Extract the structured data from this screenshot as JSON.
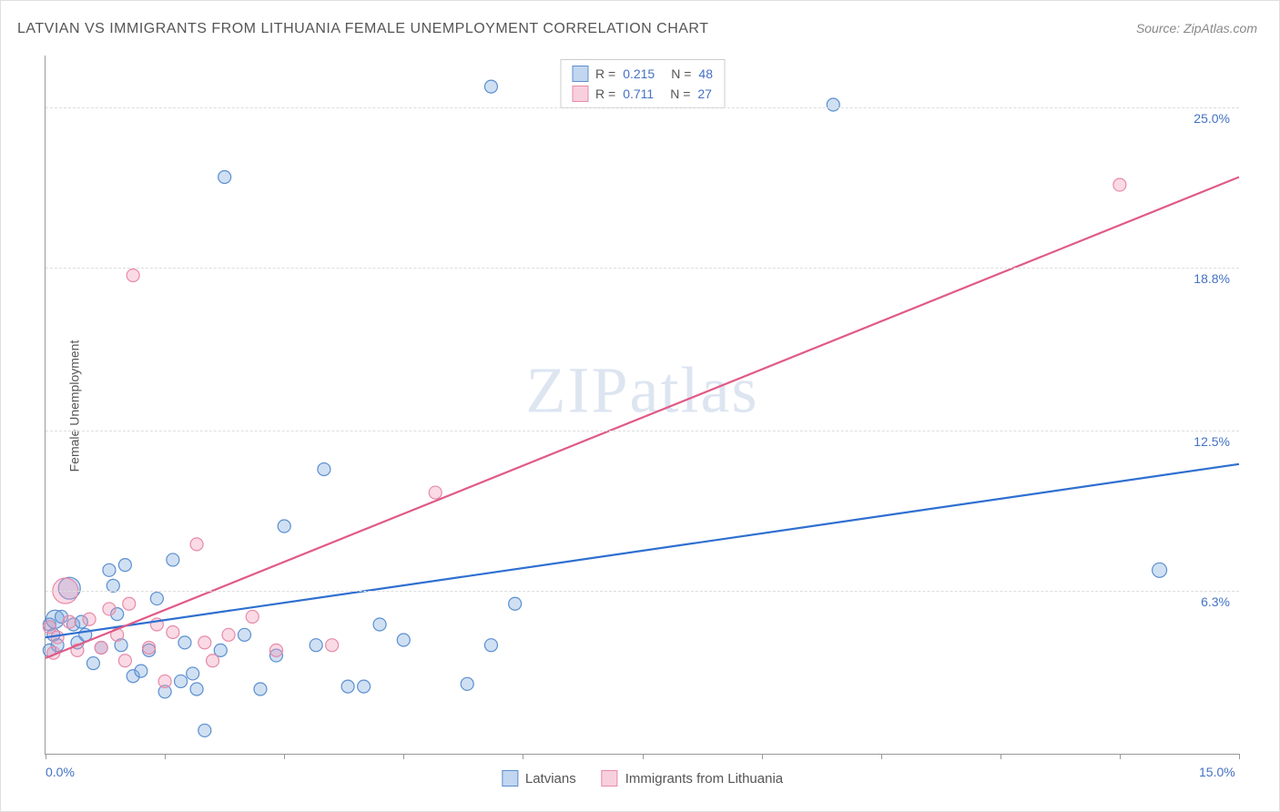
{
  "title": "LATVIAN VS IMMIGRANTS FROM LITHUANIA FEMALE UNEMPLOYMENT CORRELATION CHART",
  "source": "Source: ZipAtlas.com",
  "y_axis_label": "Female Unemployment",
  "watermark": "ZIPatlas",
  "chart": {
    "type": "scatter",
    "xlim": [
      0.0,
      15.0
    ],
    "ylim": [
      0.0,
      27.0
    ],
    "x_ticks": [
      0.0,
      1.5,
      3.0,
      4.5,
      6.0,
      7.5,
      9.0,
      10.5,
      12.0,
      13.5,
      15.0
    ],
    "x_tick_labels": {
      "0": "0.0%",
      "15": "15.0%"
    },
    "y_gridlines": [
      6.3,
      12.5,
      18.8,
      25.0
    ],
    "y_tick_labels": [
      "6.3%",
      "12.5%",
      "18.8%",
      "25.0%"
    ],
    "background_color": "#ffffff",
    "grid_color": "#dddddd",
    "axis_color": "#999999",
    "marker_radius": 7,
    "marker_stroke_width": 1.2,
    "line_width": 2.2,
    "series": [
      {
        "name": "Latvians",
        "color_fill": "rgba(120,165,220,0.35)",
        "color_stroke": "#5b8fd0",
        "line_color": "#2f6fd0",
        "r_value": "0.215",
        "n_value": "48",
        "trend_line": {
          "x1": 0.0,
          "y1": 4.5,
          "x2": 15.0,
          "y2": 11.2
        },
        "points": [
          {
            "x": 0.05,
            "y": 5.0,
            "r": 7
          },
          {
            "x": 0.05,
            "y": 4.0,
            "r": 7
          },
          {
            "x": 0.1,
            "y": 4.6,
            "r": 7
          },
          {
            "x": 0.12,
            "y": 5.2,
            "r": 10
          },
          {
            "x": 0.15,
            "y": 4.2,
            "r": 7
          },
          {
            "x": 0.2,
            "y": 5.3,
            "r": 7
          },
          {
            "x": 0.3,
            "y": 6.4,
            "r": 12
          },
          {
            "x": 0.35,
            "y": 5.0,
            "r": 7
          },
          {
            "x": 0.4,
            "y": 4.3,
            "r": 7
          },
          {
            "x": 0.45,
            "y": 5.1,
            "r": 7
          },
          {
            "x": 0.5,
            "y": 4.6,
            "r": 7
          },
          {
            "x": 0.6,
            "y": 3.5,
            "r": 7
          },
          {
            "x": 0.7,
            "y": 4.1,
            "r": 7
          },
          {
            "x": 0.8,
            "y": 7.1,
            "r": 7
          },
          {
            "x": 0.85,
            "y": 6.5,
            "r": 7
          },
          {
            "x": 0.9,
            "y": 5.4,
            "r": 7
          },
          {
            "x": 0.95,
            "y": 4.2,
            "r": 7
          },
          {
            "x": 1.0,
            "y": 7.3,
            "r": 7
          },
          {
            "x": 1.1,
            "y": 3.0,
            "r": 7
          },
          {
            "x": 1.2,
            "y": 3.2,
            "r": 7
          },
          {
            "x": 1.3,
            "y": 4.0,
            "r": 7
          },
          {
            "x": 1.4,
            "y": 6.0,
            "r": 7
          },
          {
            "x": 1.5,
            "y": 2.4,
            "r": 7
          },
          {
            "x": 1.6,
            "y": 7.5,
            "r": 7
          },
          {
            "x": 1.7,
            "y": 2.8,
            "r": 7
          },
          {
            "x": 1.75,
            "y": 4.3,
            "r": 7
          },
          {
            "x": 1.85,
            "y": 3.1,
            "r": 7
          },
          {
            "x": 1.9,
            "y": 2.5,
            "r": 7
          },
          {
            "x": 2.0,
            "y": 0.9,
            "r": 7
          },
          {
            "x": 2.2,
            "y": 4.0,
            "r": 7
          },
          {
            "x": 2.25,
            "y": 22.3,
            "r": 7
          },
          {
            "x": 2.5,
            "y": 4.6,
            "r": 7
          },
          {
            "x": 2.7,
            "y": 2.5,
            "r": 7
          },
          {
            "x": 2.9,
            "y": 3.8,
            "r": 7
          },
          {
            "x": 3.0,
            "y": 8.8,
            "r": 7
          },
          {
            "x": 3.4,
            "y": 4.2,
            "r": 7
          },
          {
            "x": 3.5,
            "y": 11.0,
            "r": 7
          },
          {
            "x": 3.8,
            "y": 2.6,
            "r": 7
          },
          {
            "x": 4.0,
            "y": 2.6,
            "r": 7
          },
          {
            "x": 4.2,
            "y": 5.0,
            "r": 7
          },
          {
            "x": 4.5,
            "y": 4.4,
            "r": 7
          },
          {
            "x": 5.3,
            "y": 2.7,
            "r": 7
          },
          {
            "x": 5.6,
            "y": 25.8,
            "r": 7
          },
          {
            "x": 5.6,
            "y": 4.2,
            "r": 7
          },
          {
            "x": 5.9,
            "y": 5.8,
            "r": 7
          },
          {
            "x": 9.9,
            "y": 25.1,
            "r": 7
          },
          {
            "x": 14.0,
            "y": 7.1,
            "r": 8
          }
        ]
      },
      {
        "name": "Immigrants from Lithuania",
        "color_fill": "rgba(240,150,180,0.35)",
        "color_stroke": "#e88aa8",
        "line_color": "#e05a86",
        "r_value": "0.711",
        "n_value": "27",
        "trend_line": {
          "x1": 0.0,
          "y1": 3.7,
          "x2": 15.0,
          "y2": 22.3
        },
        "points": [
          {
            "x": 0.05,
            "y": 4.9,
            "r": 7
          },
          {
            "x": 0.1,
            "y": 3.9,
            "r": 7
          },
          {
            "x": 0.15,
            "y": 4.5,
            "r": 7
          },
          {
            "x": 0.25,
            "y": 6.3,
            "r": 14
          },
          {
            "x": 0.3,
            "y": 5.1,
            "r": 7
          },
          {
            "x": 0.4,
            "y": 4.0,
            "r": 7
          },
          {
            "x": 0.55,
            "y": 5.2,
            "r": 7
          },
          {
            "x": 0.7,
            "y": 4.1,
            "r": 7
          },
          {
            "x": 0.8,
            "y": 5.6,
            "r": 7
          },
          {
            "x": 0.9,
            "y": 4.6,
            "r": 7
          },
          {
            "x": 1.0,
            "y": 3.6,
            "r": 7
          },
          {
            "x": 1.05,
            "y": 5.8,
            "r": 7
          },
          {
            "x": 1.1,
            "y": 18.5,
            "r": 7
          },
          {
            "x": 1.3,
            "y": 4.1,
            "r": 7
          },
          {
            "x": 1.4,
            "y": 5.0,
            "r": 7
          },
          {
            "x": 1.5,
            "y": 2.8,
            "r": 7
          },
          {
            "x": 1.6,
            "y": 4.7,
            "r": 7
          },
          {
            "x": 1.9,
            "y": 8.1,
            "r": 7
          },
          {
            "x": 2.0,
            "y": 4.3,
            "r": 7
          },
          {
            "x": 2.1,
            "y": 3.6,
            "r": 7
          },
          {
            "x": 2.3,
            "y": 4.6,
            "r": 7
          },
          {
            "x": 2.6,
            "y": 5.3,
            "r": 7
          },
          {
            "x": 2.9,
            "y": 4.0,
            "r": 7
          },
          {
            "x": 3.6,
            "y": 4.2,
            "r": 7
          },
          {
            "x": 4.9,
            "y": 10.1,
            "r": 7
          },
          {
            "x": 13.5,
            "y": 22.0,
            "r": 7
          }
        ]
      }
    ]
  },
  "legend_bottom": [
    {
      "label": "Latvians",
      "fill": "rgba(120,165,220,0.45)",
      "stroke": "#5b8fd0"
    },
    {
      "label": "Immigrants from Lithuania",
      "fill": "rgba(240,150,180,0.45)",
      "stroke": "#e88aa8"
    }
  ]
}
